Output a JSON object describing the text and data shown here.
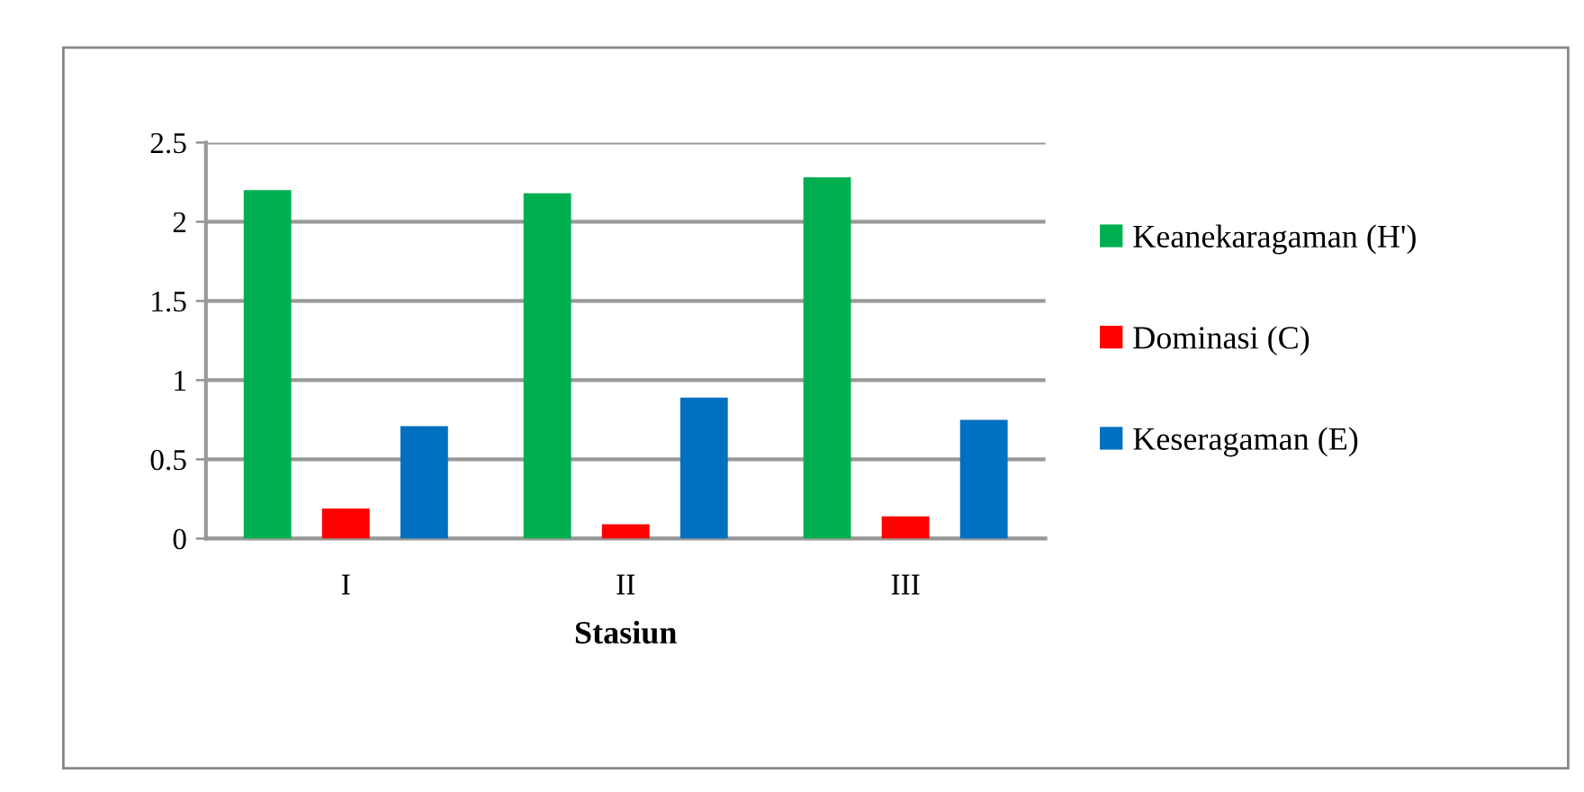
{
  "chart_data": {
    "type": "bar",
    "xlabel": "Stasiun",
    "categories": [
      "I",
      "II",
      "III"
    ],
    "series": [
      {
        "name": "Keanekaragaman (H')",
        "color": "#00b050",
        "values": [
          2.2,
          2.18,
          2.28
        ]
      },
      {
        "name": "Dominasi (C)",
        "color": "#ff0000",
        "values": [
          0.19,
          0.09,
          0.14
        ]
      },
      {
        "name": "Keseragaman (E)",
        "color": "#0070c0",
        "values": [
          0.71,
          0.89,
          0.75
        ]
      }
    ],
    "ylim": [
      0,
      2.5
    ],
    "yticks": [
      0,
      0.5,
      1,
      1.5,
      2,
      2.5
    ],
    "grid": "y",
    "legend": "right"
  }
}
